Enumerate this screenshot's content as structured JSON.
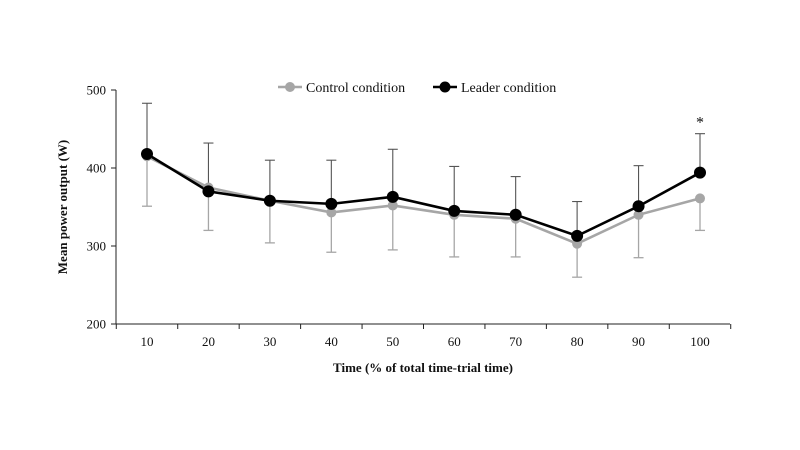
{
  "chart_data": {
    "type": "line",
    "title": "",
    "xlabel": "Time (% of total time-trial time)",
    "ylabel": "Mean power output (W)",
    "x": [
      10,
      20,
      30,
      40,
      50,
      60,
      70,
      80,
      90,
      100
    ],
    "ylim": [
      200,
      500
    ],
    "yticks": [
      200,
      300,
      400,
      500
    ],
    "grid": false,
    "legend_position": "top",
    "series": [
      {
        "name": "Control condition",
        "color": "#a6a6a6",
        "values": [
          415,
          375,
          358,
          343,
          352,
          340,
          335,
          303,
          340,
          361
        ],
        "error_lower": [
          351,
          320,
          304,
          292,
          295,
          286,
          286,
          260,
          285,
          320
        ]
      },
      {
        "name": "Leader condition",
        "color": "#000000",
        "values": [
          418,
          370,
          358,
          354,
          363,
          345,
          340,
          313,
          351,
          394
        ],
        "error_upper": [
          483,
          432,
          410,
          410,
          424,
          402,
          389,
          357,
          403,
          444
        ]
      }
    ],
    "annotations": [
      {
        "text": "*",
        "x": 100
      }
    ]
  }
}
